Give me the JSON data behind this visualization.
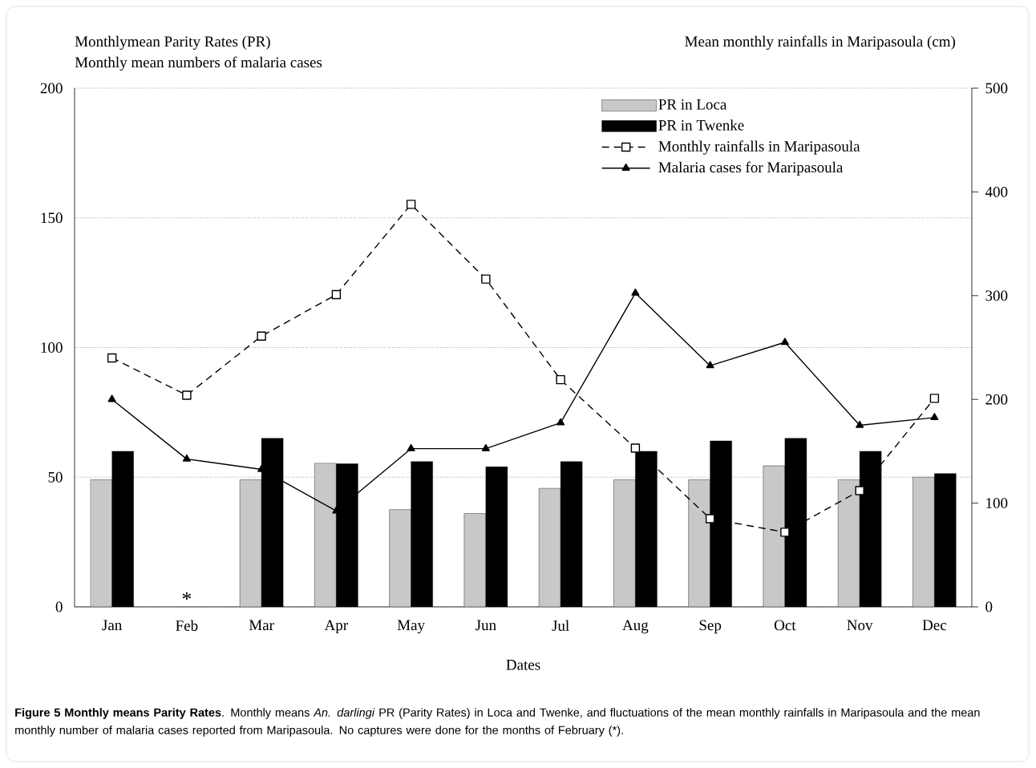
{
  "chart_data": {
    "type": "bar",
    "ylabel": "Monthlymean Parity Rates (PR)",
    "y2label": "Mean monthly rainfalls in Maripasoula (cm)",
    "xlabel": "Dates",
    "categories": [
      "Jan",
      "Feb",
      "Mar",
      "Apr",
      "May",
      "Jun",
      "Jul",
      "Aug",
      "Sep",
      "Oct",
      "Nov",
      "Dec"
    ],
    "series": [
      {
        "name": "PR in Loca",
        "color": "#c8c8c8",
        "values": [
          49,
          null,
          49,
          55.4,
          37.5,
          36,
          45.7,
          49,
          49,
          54.4,
          49,
          50
        ]
      },
      {
        "name": "PR in Twenke",
        "color": "#000000",
        "values": [
          60,
          null,
          65,
          55.2,
          56,
          54,
          56,
          60,
          64,
          65,
          60,
          51.4
        ]
      },
      {
        "name": "Monthly rainfalls in Maripasoula",
        "type": "line",
        "axis": "y2",
        "color": "#000000",
        "marker": "square",
        "line_style": "dashed",
        "values": [
          240,
          204,
          261,
          301,
          388,
          316,
          219,
          153,
          85,
          72,
          112,
          201
        ]
      },
      {
        "name": "Malaria cases for Maripasoula",
        "type": "line",
        "axis": "y",
        "color": "#000000",
        "marker": "triangle",
        "line_style": "solid",
        "values": [
          80,
          57,
          53,
          37,
          61,
          61,
          71,
          121,
          93,
          102,
          70,
          73
        ]
      }
    ],
    "ylim": [
      0,
      200
    ],
    "yticks": [
      0,
      50,
      100,
      150,
      200
    ],
    "y2lim": [
      0,
      500
    ],
    "y2ticks": [
      0,
      100,
      200,
      300,
      400,
      500
    ],
    "grid": "y",
    "legend": "top right",
    "annotations": [
      "Monthly mean numbers of malaria cases",
      "*",
      "**Figure 5 Monthly means Parity Rates**. Monthly means *An. darlingi* PR (Parity Rates) in Loca and Twenke, and fluctuations of the mean monthly rainfalls in Maripasoula and the mean monthly number of malaria cases reported from Maripasoula. No captures were done for the months of February (*)."
    ]
  }
}
